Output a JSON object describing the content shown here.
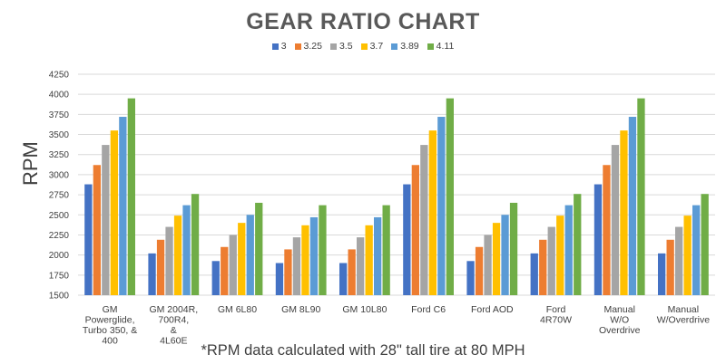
{
  "chart_data": {
    "type": "bar",
    "title": "GEAR RATIO CHART",
    "ylabel": "RPM",
    "xlabel": "",
    "footnote": "*RPM data calculated with 28\" tall tire at 80 MPH",
    "ylim": [
      1500,
      4250
    ],
    "yticks": [
      1500,
      1750,
      2000,
      2250,
      2500,
      2750,
      3000,
      3250,
      3500,
      3750,
      4000,
      4250
    ],
    "legend_position": "top-center",
    "grid": true,
    "categories": [
      [
        "GM",
        "Powerglide,",
        "Turbo 350, &",
        "400"
      ],
      [
        "GM 2004R,",
        "700R4,",
        "&",
        "4L60E"
      ],
      [
        "GM 6L80"
      ],
      [
        "GM 8L90"
      ],
      [
        "GM 10L80"
      ],
      [
        "Ford C6"
      ],
      [
        "Ford AOD"
      ],
      [
        "Ford",
        "4R70W"
      ],
      [
        "Manual",
        "W/O",
        "Overdrive"
      ],
      [
        "Manual",
        "W/Overdrive"
      ]
    ],
    "series": [
      {
        "name": "3",
        "color": "#4472C4",
        "values": [
          2880,
          2020,
          1925,
          1900,
          1900,
          2880,
          1925,
          2020,
          2880,
          2020
        ]
      },
      {
        "name": "3.25",
        "color": "#ED7D31",
        "values": [
          3120,
          2190,
          2100,
          2070,
          2070,
          3120,
          2100,
          2190,
          3120,
          2190
        ]
      },
      {
        "name": "3.5",
        "color": "#A5A5A5",
        "values": [
          3370,
          2350,
          2250,
          2220,
          2220,
          3370,
          2250,
          2350,
          3370,
          2350
        ]
      },
      {
        "name": "3.7",
        "color": "#FFC000",
        "values": [
          3550,
          2490,
          2400,
          2370,
          2370,
          3550,
          2400,
          2490,
          3550,
          2490
        ]
      },
      {
        "name": "3.89",
        "color": "#5B9BD5",
        "values": [
          3720,
          2620,
          2500,
          2470,
          2470,
          3720,
          2500,
          2620,
          3720,
          2620
        ]
      },
      {
        "name": "4.11",
        "color": "#70AD47",
        "values": [
          3950,
          2760,
          2650,
          2620,
          2620,
          3950,
          2650,
          2760,
          3950,
          2760
        ]
      }
    ]
  }
}
